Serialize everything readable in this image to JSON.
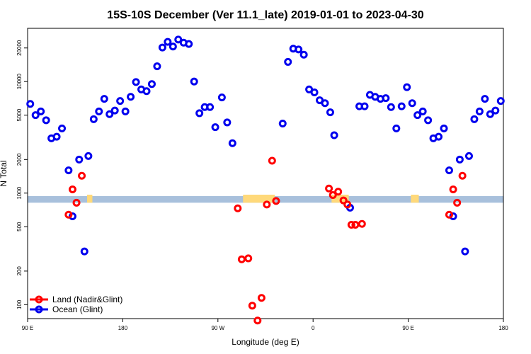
{
  "chart_data": {
    "type": "scatter",
    "title": "15S-10S December (Ver 11.1_late)   2019-01-01 to 2023-04-30",
    "xlabel": "Longitude (deg E)",
    "ylabel": "N Total",
    "y_scale": "log",
    "xlim": [
      90,
      450
    ],
    "ylim": [
      75,
      30000
    ],
    "x_ticks": [
      {
        "value": 90,
        "label": "90 E"
      },
      {
        "value": 162,
        "label": "180"
      },
      {
        "value": 234,
        "label": "90 W"
      },
      {
        "value": 306,
        "label": "0"
      },
      {
        "value": 378,
        "label": "90 E"
      },
      {
        "value": 450,
        "label": "180"
      }
    ],
    "y_ticks": [
      100,
      200,
      500,
      1000,
      2000,
      5000,
      10000,
      20000
    ],
    "band": {
      "lower": 820,
      "upper": 940,
      "color": "#a8c0dc",
      "land_color": "#ffd97a"
    },
    "land_segments": [
      [
        135,
        139
      ],
      [
        253,
        277
      ],
      [
        320,
        333
      ],
      [
        380,
        386
      ]
    ],
    "legend": {
      "position": "bottom-left"
    },
    "series": [
      {
        "name": "Land (Nadir&Glint)",
        "color": "#ff0000",
        "points": [
          {
            "x": 121,
            "y": 640
          },
          {
            "x": 124,
            "y": 1080
          },
          {
            "x": 127,
            "y": 820
          },
          {
            "x": 131,
            "y": 1430
          },
          {
            "x": 249,
            "y": 730
          },
          {
            "x": 252,
            "y": 255
          },
          {
            "x": 257,
            "y": 260
          },
          {
            "x": 260,
            "y": 98
          },
          {
            "x": 264,
            "y": 72
          },
          {
            "x": 267,
            "y": 115
          },
          {
            "x": 271,
            "y": 790
          },
          {
            "x": 275,
            "y": 1950
          },
          {
            "x": 278,
            "y": 850
          },
          {
            "x": 318,
            "y": 1100
          },
          {
            "x": 321,
            "y": 960
          },
          {
            "x": 325,
            "y": 1030
          },
          {
            "x": 329,
            "y": 860
          },
          {
            "x": 332,
            "y": 790
          },
          {
            "x": 335,
            "y": 520
          },
          {
            "x": 338,
            "y": 520
          },
          {
            "x": 343,
            "y": 530
          },
          {
            "x": 409,
            "y": 640
          },
          {
            "x": 412,
            "y": 1080
          },
          {
            "x": 415,
            "y": 820
          },
          {
            "x": 419,
            "y": 1430
          }
        ]
      },
      {
        "name": "Ocean (Glint)",
        "color": "#0000ee",
        "points": [
          {
            "x": 92,
            "y": 6300
          },
          {
            "x": 96,
            "y": 5000
          },
          {
            "x": 100,
            "y": 5400
          },
          {
            "x": 104,
            "y": 4500
          },
          {
            "x": 108,
            "y": 3100
          },
          {
            "x": 112,
            "y": 3200
          },
          {
            "x": 116,
            "y": 3800
          },
          {
            "x": 121,
            "y": 1600
          },
          {
            "x": 124,
            "y": 620
          },
          {
            "x": 129,
            "y": 2000
          },
          {
            "x": 133,
            "y": 300
          },
          {
            "x": 136,
            "y": 2150
          },
          {
            "x": 140,
            "y": 4600
          },
          {
            "x": 144,
            "y": 5400
          },
          {
            "x": 148,
            "y": 7000
          },
          {
            "x": 152,
            "y": 5100
          },
          {
            "x": 156,
            "y": 5500
          },
          {
            "x": 160,
            "y": 6700
          },
          {
            "x": 164,
            "y": 5400
          },
          {
            "x": 168,
            "y": 7300
          },
          {
            "x": 172,
            "y": 9900
          },
          {
            "x": 176,
            "y": 8500
          },
          {
            "x": 180,
            "y": 8200
          },
          {
            "x": 184,
            "y": 9500
          },
          {
            "x": 188,
            "y": 13700
          },
          {
            "x": 192,
            "y": 20200
          },
          {
            "x": 196,
            "y": 22700
          },
          {
            "x": 200,
            "y": 20600
          },
          {
            "x": 204,
            "y": 23800
          },
          {
            "x": 208,
            "y": 22300
          },
          {
            "x": 212,
            "y": 21700
          },
          {
            "x": 216,
            "y": 10000
          },
          {
            "x": 220,
            "y": 5200
          },
          {
            "x": 224,
            "y": 5900
          },
          {
            "x": 228,
            "y": 5900
          },
          {
            "x": 232,
            "y": 3900
          },
          {
            "x": 237,
            "y": 7200
          },
          {
            "x": 241,
            "y": 4300
          },
          {
            "x": 245,
            "y": 2800
          },
          {
            "x": 283,
            "y": 4200
          },
          {
            "x": 287,
            "y": 15000
          },
          {
            "x": 291,
            "y": 19700
          },
          {
            "x": 295,
            "y": 19400
          },
          {
            "x": 299,
            "y": 17400
          },
          {
            "x": 303,
            "y": 8500
          },
          {
            "x": 307,
            "y": 8000
          },
          {
            "x": 311,
            "y": 6800
          },
          {
            "x": 315,
            "y": 6400
          },
          {
            "x": 319,
            "y": 5300
          },
          {
            "x": 322,
            "y": 3300
          },
          {
            "x": 334,
            "y": 740
          },
          {
            "x": 341,
            "y": 6000
          },
          {
            "x": 345,
            "y": 6000
          },
          {
            "x": 349,
            "y": 7600
          },
          {
            "x": 353,
            "y": 7300
          },
          {
            "x": 357,
            "y": 7000
          },
          {
            "x": 361,
            "y": 7100
          },
          {
            "x": 365,
            "y": 5900
          },
          {
            "x": 369,
            "y": 3800
          },
          {
            "x": 373,
            "y": 6000
          },
          {
            "x": 377,
            "y": 8900
          },
          {
            "x": 381,
            "y": 6400
          },
          {
            "x": 385,
            "y": 5000
          },
          {
            "x": 389,
            "y": 5400
          },
          {
            "x": 393,
            "y": 4500
          },
          {
            "x": 397,
            "y": 3100
          },
          {
            "x": 401,
            "y": 3200
          },
          {
            "x": 405,
            "y": 3800
          },
          {
            "x": 409,
            "y": 1600
          },
          {
            "x": 412,
            "y": 620
          },
          {
            "x": 417,
            "y": 2000
          },
          {
            "x": 421,
            "y": 300
          },
          {
            "x": 424,
            "y": 2150
          },
          {
            "x": 428,
            "y": 4600
          },
          {
            "x": 432,
            "y": 5400
          },
          {
            "x": 436,
            "y": 7000
          },
          {
            "x": 440,
            "y": 5100
          },
          {
            "x": 444,
            "y": 5500
          },
          {
            "x": 448,
            "y": 6700
          }
        ]
      }
    ]
  }
}
